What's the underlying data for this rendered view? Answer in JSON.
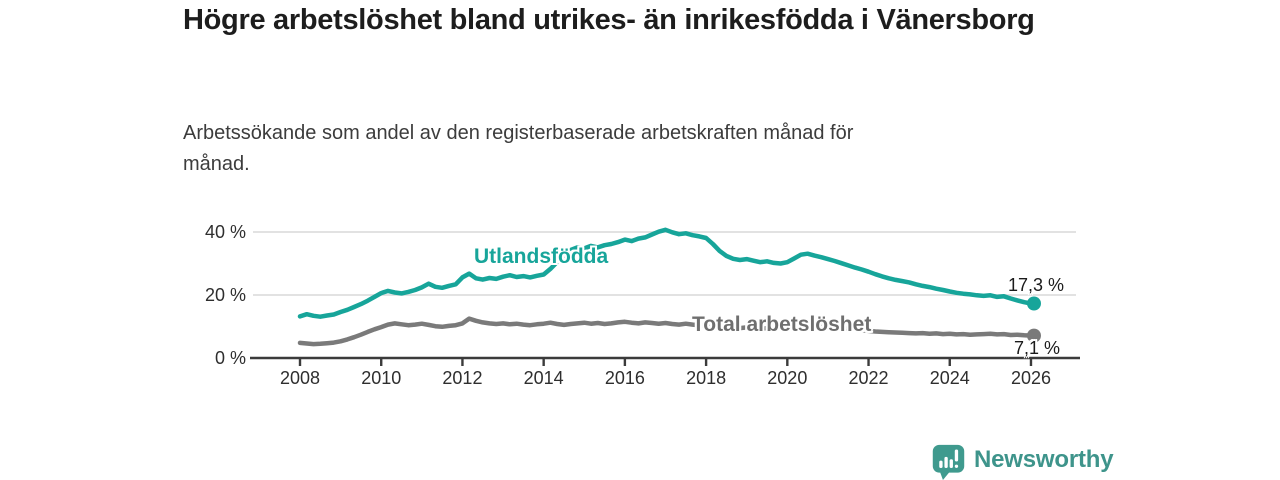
{
  "header": {
    "title": "Högre arbetslöshet bland utrikes- än inrikesfödda i Vänersborg",
    "subtitle": "Arbetssökande som andel av den registerbaserade arbetskraften månad för månad."
  },
  "chart_data": {
    "type": "line",
    "title": "Högre arbetslöshet bland utrikes- än inrikesfödda i Vänersborg",
    "xlabel": "",
    "ylabel": "",
    "unit": "%",
    "grid": "horizontal-only",
    "legend_position": "labels-on-chart",
    "x_start_year": 2008,
    "x_step_years": 0.1666667,
    "x_end_year": 2026,
    "xlim": [
      2007.2,
      2027.1
    ],
    "ylim": [
      0,
      44
    ],
    "x_ticks": [
      2008,
      2010,
      2012,
      2014,
      2016,
      2018,
      2020,
      2022,
      2024,
      2026
    ],
    "y_ticks": [
      {
        "value": 0,
        "label": "0 %"
      },
      {
        "value": 20,
        "label": "20 %"
      },
      {
        "value": 40,
        "label": "40 %"
      }
    ],
    "series": [
      {
        "name": "Utlandsfödda",
        "color": "#17a59a",
        "end_value": 17.3,
        "end_value_label": "17,3 %",
        "values": [
          13.2,
          13.9,
          13.4,
          13.1,
          13.5,
          13.8,
          14.6,
          15.3,
          16.2,
          17.1,
          18.2,
          19.4,
          20.6,
          21.3,
          20.8,
          20.5,
          21.0,
          21.6,
          22.4,
          23.6,
          22.6,
          22.3,
          22.9,
          23.4,
          25.6,
          26.8,
          25.3,
          24.9,
          25.4,
          25.1,
          25.8,
          26.3,
          25.7,
          26.0,
          25.6,
          26.1,
          26.5,
          28.3,
          30.5,
          32.6,
          34.3,
          35.1,
          34.8,
          35.6,
          35.1,
          35.8,
          36.2,
          36.8,
          37.6,
          37.1,
          37.9,
          38.3,
          39.2,
          40.1,
          40.7,
          39.9,
          39.3,
          39.6,
          39.0,
          38.6,
          38.1,
          36.2,
          34.0,
          32.4,
          31.5,
          31.1,
          31.4,
          30.9,
          30.4,
          30.7,
          30.2,
          30.0,
          30.4,
          31.6,
          32.8,
          33.1,
          32.5,
          32.0,
          31.4,
          30.8,
          30.1,
          29.4,
          28.7,
          28.1,
          27.4,
          26.6,
          25.9,
          25.3,
          24.8,
          24.4,
          24.0,
          23.4,
          22.9,
          22.5,
          22.0,
          21.6,
          21.1,
          20.7,
          20.4,
          20.2,
          19.9,
          19.7,
          19.9,
          19.4,
          19.6,
          18.9,
          18.3,
          17.7,
          17.3
        ]
      },
      {
        "name": "Total arbetslöshet",
        "color": "#7a7a7a",
        "end_value": 7.1,
        "end_value_label": "7,1 %",
        "values": [
          4.8,
          4.6,
          4.4,
          4.5,
          4.7,
          4.9,
          5.3,
          5.9,
          6.6,
          7.4,
          8.3,
          9.1,
          9.8,
          10.6,
          11.0,
          10.7,
          10.4,
          10.6,
          10.9,
          10.5,
          10.1,
          9.9,
          10.2,
          10.4,
          11.0,
          12.5,
          11.8,
          11.3,
          11.0,
          10.8,
          11.0,
          10.7,
          10.9,
          10.6,
          10.4,
          10.7,
          10.9,
          11.2,
          10.8,
          10.5,
          10.8,
          11.0,
          11.2,
          10.9,
          11.1,
          10.8,
          11.0,
          11.3,
          11.5,
          11.2,
          11.0,
          11.3,
          11.1,
          10.9,
          11.1,
          10.8,
          10.6,
          10.9,
          10.6,
          10.4,
          10.2,
          9.9,
          9.7,
          9.9,
          9.6,
          9.5,
          9.7,
          9.4,
          9.3,
          9.5,
          9.3,
          9.6,
          9.9,
          10.8,
          11.4,
          11.2,
          10.9,
          10.6,
          10.3,
          9.9,
          9.6,
          9.3,
          9.0,
          8.8,
          8.6,
          8.4,
          8.3,
          8.2,
          8.1,
          8.0,
          7.9,
          7.8,
          7.9,
          7.7,
          7.8,
          7.6,
          7.7,
          7.5,
          7.6,
          7.4,
          7.5,
          7.6,
          7.7,
          7.5,
          7.6,
          7.3,
          7.4,
          7.2,
          7.1
        ]
      }
    ]
  },
  "branding": {
    "logo_text": "Newsworthy",
    "logo_icon": "newsworthy-bar-chart-marker-icon",
    "logo_color": "#3f9a8e",
    "logo_text_color": "#3e948b"
  },
  "palette": {
    "grid_color": "#e2e2e2",
    "axis_color": "#3b3b3b",
    "text_color": "#2e2e2e"
  }
}
